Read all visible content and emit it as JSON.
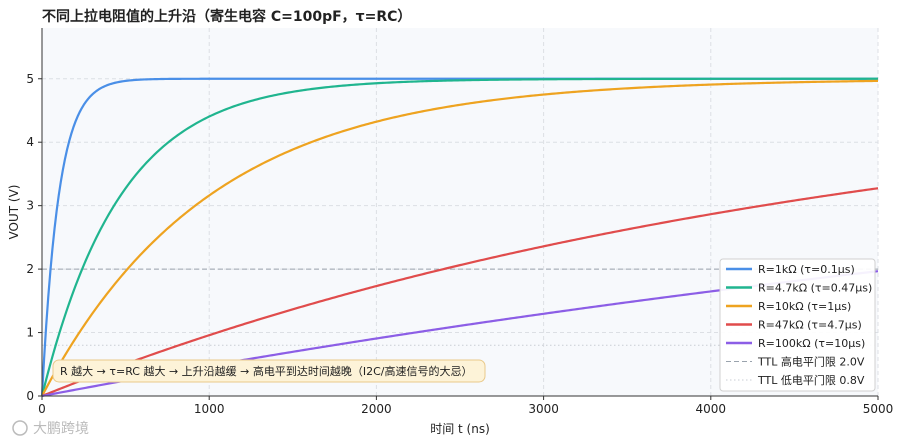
{
  "chart_data": {
    "type": "line",
    "title": "不同上拉电阻值的上升沿（寄生电容 C=100pF，τ=RC）",
    "xlabel": "时间 t (ns)",
    "ylabel": "VOUT (V)",
    "xlim": [
      0,
      5000
    ],
    "ylim": [
      0,
      5.8
    ],
    "xticks": [
      0,
      1000,
      2000,
      3000,
      4000,
      5000
    ],
    "yticks": [
      0,
      1,
      2,
      3,
      4,
      5
    ],
    "grid": true,
    "legend_position": "lower-right",
    "series": [
      {
        "name": "R=1kΩ (τ=0.1μs)",
        "tau_ns": 100,
        "vdd": 5,
        "color": "#4a8fe7",
        "x": [
          0,
          100,
          200,
          300,
          500,
          1000,
          5000
        ],
        "y": [
          0,
          3.16,
          4.32,
          4.75,
          4.97,
          5.0,
          5.0
        ]
      },
      {
        "name": "R=4.7kΩ (τ=0.47μs)",
        "tau_ns": 470,
        "vdd": 5,
        "color": "#20b58f",
        "x": [
          0,
          500,
          1000,
          2000,
          3000,
          5000
        ],
        "y": [
          0,
          3.27,
          4.4,
          4.93,
          4.99,
          5.0
        ]
      },
      {
        "name": "R=10kΩ (τ=1μs)",
        "tau_ns": 1000,
        "vdd": 5,
        "color": "#eea320",
        "x": [
          0,
          1000,
          2000,
          3000,
          4000,
          5000
        ],
        "y": [
          0,
          3.16,
          4.32,
          4.75,
          4.91,
          4.97
        ]
      },
      {
        "name": "R=47kΩ (τ=4.7μs)",
        "tau_ns": 4700,
        "vdd": 5,
        "color": "#e04c4c",
        "x": [
          0,
          1000,
          2000,
          3000,
          4000,
          5000
        ],
        "y": [
          0,
          0.96,
          1.73,
          2.36,
          2.87,
          3.27
        ]
      },
      {
        "name": "R=100kΩ (τ=10μs)",
        "tau_ns": 10000,
        "vdd": 5,
        "color": "#8c5ee6",
        "x": [
          0,
          1000,
          2000,
          3000,
          4000,
          5000
        ],
        "y": [
          0,
          0.48,
          0.91,
          1.3,
          1.65,
          1.97
        ]
      }
    ],
    "thresholds": [
      {
        "name": "TTL 高电平门限 2.0V",
        "value": 2.0,
        "color": "#9aa3ad",
        "style": "dashed"
      },
      {
        "name": "TTL 低电平门限 0.8V",
        "value": 0.8,
        "color": "#c9ced4",
        "style": "dotted"
      }
    ],
    "annotation": "R 越大 → τ=RC 越大 → 上升沿越缓 → 高电平到达时间越晚（I2C/高速信号的大忌）"
  },
  "watermark": "大鹏跨境"
}
